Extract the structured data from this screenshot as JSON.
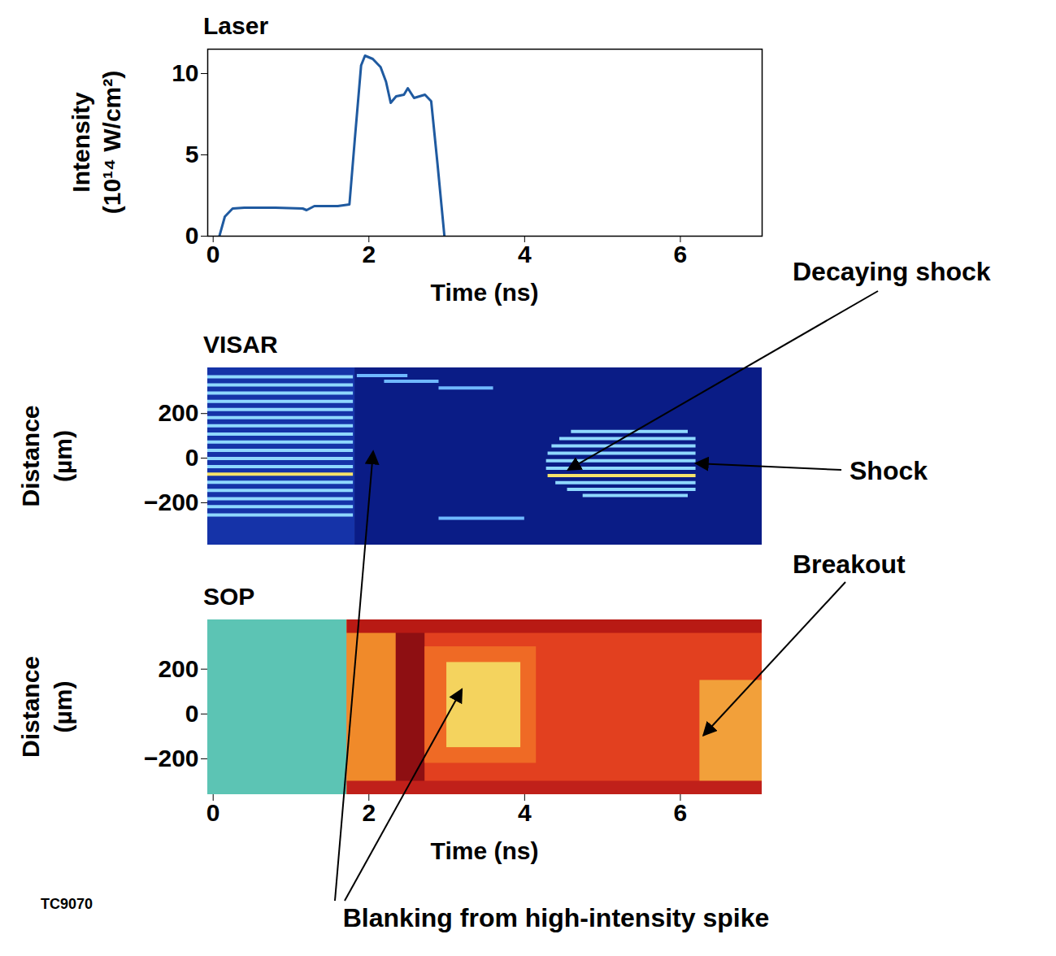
{
  "chart_data": [
    {
      "type": "line",
      "title": "Laser",
      "x_label": "Time (ns)",
      "y_label": "Intensity (10¹⁴ W/cm²)",
      "x": [
        0.08,
        0.15,
        0.25,
        0.4,
        0.8,
        1.15,
        1.2,
        1.3,
        1.6,
        1.75,
        1.82,
        1.9,
        1.95,
        2.05,
        2.15,
        2.22,
        2.28,
        2.35,
        2.45,
        2.5,
        2.58,
        2.65,
        2.72,
        2.8,
        2.88,
        2.97
      ],
      "values": [
        0,
        1.2,
        1.7,
        1.75,
        1.75,
        1.7,
        1.6,
        1.85,
        1.85,
        1.95,
        6,
        10.5,
        11.1,
        10.9,
        10.4,
        9.5,
        8.2,
        8.6,
        8.7,
        9.1,
        8.5,
        8.6,
        8.7,
        8.3,
        4.5,
        0
      ],
      "color": "#1f5aa0",
      "xlim": [
        -0.07,
        7.05
      ],
      "ylim": [
        0,
        11.5
      ],
      "xticks": [
        0,
        2,
        4,
        6
      ],
      "yticks": [
        0,
        5,
        10
      ]
    },
    {
      "type": "image",
      "title": "VISAR",
      "y_label": "Distance (µm)",
      "xlim": [
        -0.07,
        7.05
      ],
      "ylim": [
        -390,
        405
      ],
      "yticks": [
        -200,
        0,
        200
      ],
      "tick_labels": "y",
      "regions": [
        {
          "x0": -0.07,
          "x1": 1.82,
          "y0": -390,
          "y1": 405,
          "color": "#1533a8"
        },
        {
          "x0": 1.82,
          "x1": 7.05,
          "y0": -390,
          "y1": 405,
          "color": "#0a1c86"
        }
      ],
      "fringes": [
        {
          "x0": -0.07,
          "x1": 1.8,
          "y": 365,
          "color": "#8fd8ff"
        },
        {
          "x0": -0.07,
          "x1": 1.8,
          "y": 328,
          "color": "#8fd8ff"
        },
        {
          "x0": -0.07,
          "x1": 1.8,
          "y": 292,
          "color": "#8fd8ff"
        },
        {
          "x0": -0.07,
          "x1": 1.8,
          "y": 255,
          "color": "#8fd8ff"
        },
        {
          "x0": -0.07,
          "x1": 1.8,
          "y": 218,
          "color": "#8fd8ff"
        },
        {
          "x0": -0.07,
          "x1": 1.8,
          "y": 182,
          "color": "#8fd8ff"
        },
        {
          "x0": -0.07,
          "x1": 1.8,
          "y": 145,
          "color": "#8fd8ff"
        },
        {
          "x0": -0.07,
          "x1": 1.8,
          "y": 108,
          "color": "#8fd8ff"
        },
        {
          "x0": -0.07,
          "x1": 1.8,
          "y": 72,
          "color": "#8fd8ff"
        },
        {
          "x0": -0.07,
          "x1": 1.8,
          "y": 35,
          "color": "#8fd8ff"
        },
        {
          "x0": -0.07,
          "x1": 1.8,
          "y": -2,
          "color": "#8fd8ff"
        },
        {
          "x0": -0.07,
          "x1": 1.8,
          "y": -38,
          "color": "#8fd8ff"
        },
        {
          "x0": -0.07,
          "x1": 1.8,
          "y": -72,
          "color": "#f6e36a"
        },
        {
          "x0": -0.07,
          "x1": 1.8,
          "y": -108,
          "color": "#8fd8ff"
        },
        {
          "x0": -0.07,
          "x1": 1.8,
          "y": -145,
          "color": "#8fd8ff"
        },
        {
          "x0": -0.07,
          "x1": 1.8,
          "y": -182,
          "color": "#8fd8ff"
        },
        {
          "x0": -0.07,
          "x1": 1.8,
          "y": -218,
          "color": "#8fd8ff"
        },
        {
          "x0": -0.07,
          "x1": 1.8,
          "y": -255,
          "color": "#8fd8ff"
        },
        {
          "x0": 1.85,
          "x1": 2.5,
          "y": 370,
          "color": "#6fb8ff"
        },
        {
          "x0": 2.2,
          "x1": 2.9,
          "y": 345,
          "color": "#6fb8ff"
        },
        {
          "x0": 2.9,
          "x1": 3.6,
          "y": 315,
          "color": "#6fb8ff"
        },
        {
          "x0": 2.9,
          "x1": 4.0,
          "y": -270,
          "color": "#6fb8ff"
        },
        {
          "x0": 4.6,
          "x1": 6.1,
          "y": 120,
          "color": "#8fd8ff"
        },
        {
          "x0": 4.45,
          "x1": 6.2,
          "y": 88,
          "color": "#8fd8ff"
        },
        {
          "x0": 4.35,
          "x1": 6.2,
          "y": 55,
          "color": "#8fd8ff"
        },
        {
          "x0": 4.3,
          "x1": 6.2,
          "y": 22,
          "color": "#8fd8ff"
        },
        {
          "x0": 4.28,
          "x1": 6.2,
          "y": -12,
          "color": "#8fd8ff"
        },
        {
          "x0": 4.28,
          "x1": 6.2,
          "y": -45,
          "color": "#8fd8ff"
        },
        {
          "x0": 4.3,
          "x1": 6.2,
          "y": -78,
          "color": "#f6e36a"
        },
        {
          "x0": 4.4,
          "x1": 6.2,
          "y": -110,
          "color": "#8fd8ff"
        },
        {
          "x0": 4.55,
          "x1": 6.2,
          "y": -140,
          "color": "#8fd8ff"
        },
        {
          "x0": 4.75,
          "x1": 6.1,
          "y": -168,
          "color": "#8fd8ff"
        }
      ]
    },
    {
      "type": "image",
      "title": "SOP",
      "x_label": "Time (ns)",
      "y_label": "Distance (µm)",
      "xlim": [
        -0.07,
        7.05
      ],
      "ylim": [
        -360,
        420
      ],
      "xticks": [
        0,
        2,
        4,
        6
      ],
      "yticks": [
        -200,
        0,
        200
      ],
      "regions": [
        {
          "x0": -0.07,
          "x1": 1.72,
          "y0": -360,
          "y1": 420,
          "color": "#5cc4b4"
        },
        {
          "x0": 1.72,
          "x1": 7.05,
          "y0": -360,
          "y1": 420,
          "color": "#e2401f"
        },
        {
          "x0": 1.72,
          "x1": 2.35,
          "y0": -360,
          "y1": 420,
          "color": "#f08a2a"
        },
        {
          "x0": 2.35,
          "x1": 2.72,
          "y0": -360,
          "y1": 420,
          "color": "#8e0f12"
        },
        {
          "x0": 2.72,
          "x1": 4.15,
          "y0": -220,
          "y1": 300,
          "color": "#ef6a25"
        },
        {
          "x0": 3.0,
          "x1": 3.95,
          "y0": -150,
          "y1": 230,
          "color": "#f4d35e"
        },
        {
          "x0": 6.25,
          "x1": 7.05,
          "y0": -330,
          "y1": 150,
          "color": "#f2a03a"
        },
        {
          "x0": 1.72,
          "x1": 7.05,
          "y0": 360,
          "y1": 420,
          "color": "#b81a14"
        },
        {
          "x0": 1.72,
          "x1": 7.05,
          "y0": -360,
          "y1": -300,
          "color": "#c0201a"
        }
      ]
    }
  ],
  "annotations": [
    {
      "text": "Decaying shock",
      "targets": [
        {
          "panel": "VISAR",
          "x": 4.56,
          "y": -55
        }
      ]
    },
    {
      "text": "Shock",
      "targets": [
        {
          "panel": "VISAR",
          "x": 6.2,
          "y": -25
        }
      ]
    },
    {
      "text": "Breakout",
      "targets": [
        {
          "panel": "SOP",
          "x": 6.3,
          "y": -98
        }
      ]
    },
    {
      "text": "Blanking from high-intensity spike",
      "targets": [
        {
          "panel": "VISAR",
          "x": 2.06,
          "y": 29
        },
        {
          "panel": "SOP",
          "x": 3.2,
          "y": 109
        }
      ]
    }
  ],
  "figure_id": "TC9070"
}
